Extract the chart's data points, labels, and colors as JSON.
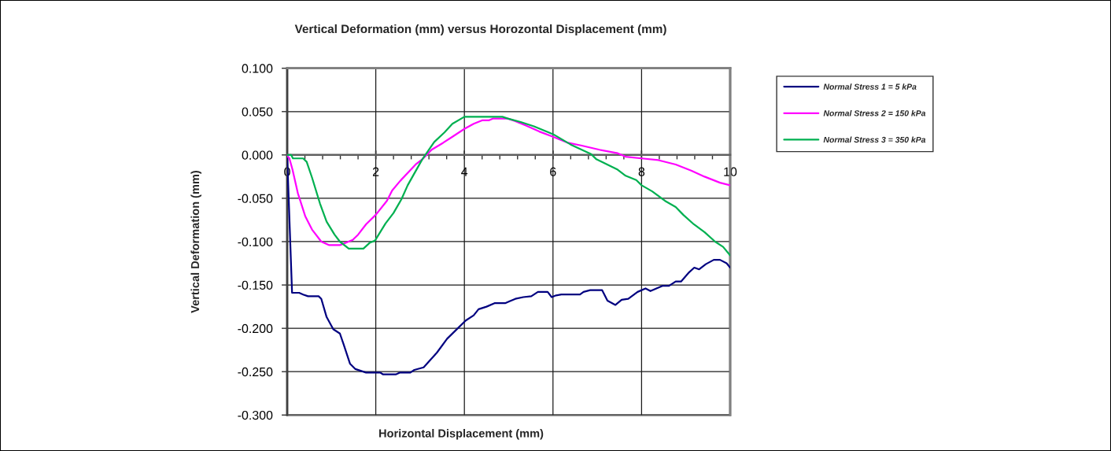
{
  "chart_data": {
    "type": "line",
    "title": "Vertical Deformation (mm) versus Horozontal Displacement (mm)",
    "xlabel": "Horizontal Displacement (mm)",
    "ylabel": "Vertical Deformation (mm)",
    "xlim": [
      0,
      10
    ],
    "ylim": [
      -0.3,
      0.1
    ],
    "xticks": [
      0,
      2,
      4,
      6,
      8,
      10
    ],
    "yticks": [
      {
        "value": 0.1,
        "label": "0.100"
      },
      {
        "value": 0.05,
        "label": "0.050"
      },
      {
        "value": 0,
        "label": "0.000"
      },
      {
        "value": -0.05,
        "label": "-0.050"
      },
      {
        "value": -0.1,
        "label": "-0.100"
      },
      {
        "value": -0.15,
        "label": "-0.150"
      },
      {
        "value": -0.2,
        "label": "-0.200"
      },
      {
        "value": -0.25,
        "label": "-0.250"
      },
      {
        "value": -0.3,
        "label": "-0.300"
      }
    ],
    "grid": true,
    "legend": "top right",
    "series": [
      {
        "name": "Normal Stress 1 = 5 kPa",
        "color": "#000080",
        "x": [
          0,
          0.11,
          0.27,
          0.36,
          0.47,
          0.71,
          0.77,
          0.89,
          1.04,
          1.19,
          1.27,
          1.42,
          1.54,
          1.78,
          2.1,
          2.16,
          2.46,
          2.55,
          2.78,
          2.87,
          3.08,
          3.38,
          3.61,
          3.85,
          4.03,
          4.21,
          4.32,
          4.5,
          4.68,
          4.92,
          5.01,
          5.15,
          5.33,
          5.51,
          5.66,
          5.88,
          5.97,
          6.07,
          6.19,
          6.61,
          6.69,
          6.84,
          7.11,
          7.23,
          7.41,
          7.55,
          7.7,
          7.91,
          8.09,
          8.2,
          8.47,
          8.62,
          8.77,
          8.89,
          9.06,
          9.19,
          9.3,
          9.45,
          9.63,
          9.77,
          9.92,
          10
        ],
        "values": [
          -0.002,
          -0.159,
          -0.159,
          -0.161,
          -0.163,
          -0.163,
          -0.166,
          -0.187,
          -0.201,
          -0.206,
          -0.218,
          -0.241,
          -0.247,
          -0.251,
          -0.251,
          -0.253,
          -0.253,
          -0.251,
          -0.251,
          -0.248,
          -0.245,
          -0.228,
          -0.212,
          -0.2,
          -0.191,
          -0.185,
          -0.178,
          -0.175,
          -0.171,
          -0.171,
          -0.169,
          -0.166,
          -0.164,
          -0.163,
          -0.158,
          -0.158,
          -0.164,
          -0.162,
          -0.161,
          -0.161,
          -0.158,
          -0.156,
          -0.156,
          -0.168,
          -0.173,
          -0.167,
          -0.166,
          -0.158,
          -0.154,
          -0.157,
          -0.151,
          -0.151,
          -0.146,
          -0.146,
          -0.136,
          -0.13,
          -0.132,
          -0.126,
          -0.121,
          -0.121,
          -0.125,
          -0.13
        ]
      },
      {
        "name": "Normal Stress 2 = 150 kPa",
        "color": "#ff00ff",
        "x": [
          0,
          0.05,
          0.12,
          0.24,
          0.41,
          0.56,
          0.77,
          0.95,
          1.19,
          1.48,
          1.6,
          1.78,
          2.0,
          2.25,
          2.37,
          2.55,
          2.9,
          3.05,
          3.26,
          3.52,
          3.73,
          4.0,
          4.21,
          4.41,
          4.56,
          4.65,
          4.98,
          5.15,
          5.39,
          5.69,
          6.0,
          6.34,
          6.63,
          7.05,
          7.46,
          7.64,
          8.0,
          8.38,
          8.77,
          9.12,
          9.42,
          9.77,
          10
        ],
        "values": [
          -0.001,
          -0.004,
          -0.017,
          -0.044,
          -0.071,
          -0.086,
          -0.1,
          -0.104,
          -0.104,
          -0.098,
          -0.092,
          -0.08,
          -0.069,
          -0.053,
          -0.041,
          -0.03,
          -0.011,
          -0.005,
          0.006,
          0.014,
          0.021,
          0.03,
          0.036,
          0.04,
          0.04,
          0.042,
          0.042,
          0.039,
          0.034,
          0.027,
          0.021,
          0.014,
          0.011,
          0.006,
          0.002,
          -0.002,
          -0.004,
          -0.006,
          -0.011,
          -0.018,
          -0.025,
          -0.032,
          -0.035
        ]
      },
      {
        "name": "Normal Stress 3 = 350 kPa",
        "color": "#00b050",
        "x": [
          0,
          0.09,
          0.13,
          0.36,
          0.44,
          0.56,
          0.74,
          0.89,
          1.07,
          1.19,
          1.39,
          1.72,
          1.87,
          1.98,
          2.22,
          2.4,
          2.58,
          2.72,
          3.05,
          3.32,
          3.55,
          3.73,
          4.0,
          4.86,
          4.98,
          5.27,
          5.57,
          6.0,
          6.4,
          6.86,
          6.98,
          7.46,
          7.64,
          7.88,
          8.0,
          8.24,
          8.53,
          8.77,
          8.94,
          9.18,
          9.42,
          9.66,
          9.84,
          10
        ],
        "values": [
          0.0,
          0.0,
          -0.004,
          -0.004,
          -0.008,
          -0.026,
          -0.056,
          -0.077,
          -0.092,
          -0.1,
          -0.108,
          -0.108,
          -0.101,
          -0.099,
          -0.079,
          -0.067,
          -0.051,
          -0.035,
          -0.005,
          0.015,
          0.026,
          0.036,
          0.044,
          0.044,
          0.042,
          0.038,
          0.033,
          0.024,
          0.012,
          0.001,
          -0.005,
          -0.017,
          -0.024,
          -0.029,
          -0.035,
          -0.042,
          -0.053,
          -0.06,
          -0.069,
          -0.08,
          -0.089,
          -0.1,
          -0.106,
          -0.116
        ]
      }
    ]
  }
}
